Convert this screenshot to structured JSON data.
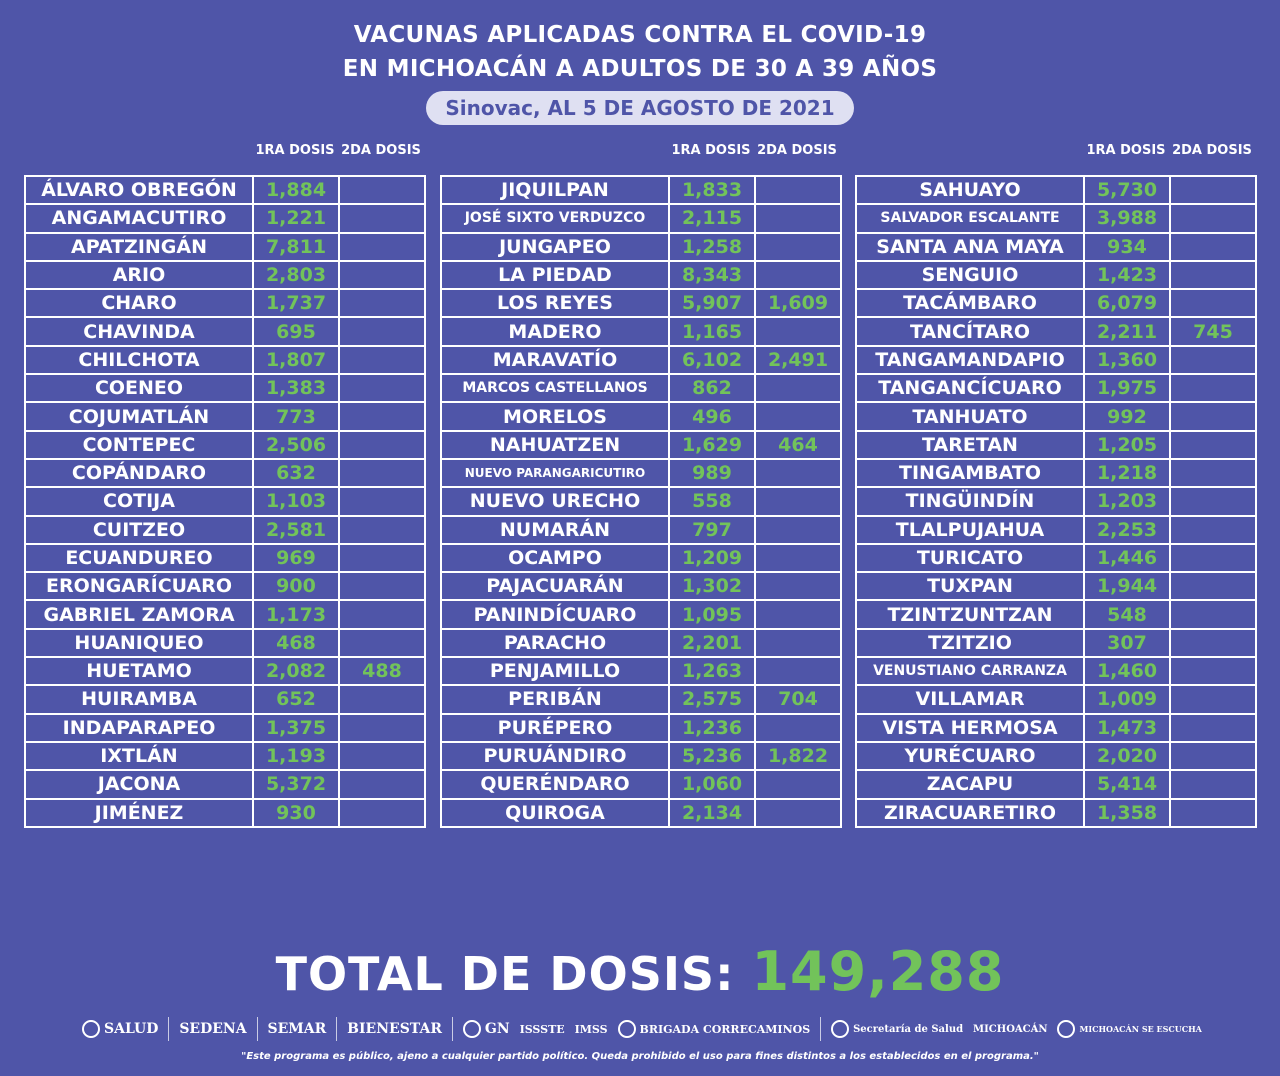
{
  "header": {
    "line1": "VACUNAS APLICADAS CONTRA EL COVID-19",
    "line2": "EN MICHOACÁN A ADULTOS DE 30 A 39 AÑOS",
    "subtitle": "Sinovac, AL 5 DE AGOSTO DE 2021"
  },
  "columns": {
    "first": "1RA DOSIS",
    "second": "2DA DOSIS"
  },
  "table1": [
    {
      "name": "ÁLVARO OBREGÓN",
      "d1": "1,884",
      "d2": ""
    },
    {
      "name": "ANGAMACUTIRO",
      "d1": "1,221",
      "d2": ""
    },
    {
      "name": "APATZINGÁN",
      "d1": "7,811",
      "d2": ""
    },
    {
      "name": "ARIO",
      "d1": "2,803",
      "d2": ""
    },
    {
      "name": "CHARO",
      "d1": "1,737",
      "d2": ""
    },
    {
      "name": "CHAVINDA",
      "d1": "695",
      "d2": ""
    },
    {
      "name": "CHILCHOTA",
      "d1": "1,807",
      "d2": ""
    },
    {
      "name": "COENEO",
      "d1": "1,383",
      "d2": ""
    },
    {
      "name": "COJUMATLÁN",
      "d1": "773",
      "d2": ""
    },
    {
      "name": "CONTEPEC",
      "d1": "2,506",
      "d2": ""
    },
    {
      "name": "COPÁNDARO",
      "d1": "632",
      "d2": ""
    },
    {
      "name": "COTIJA",
      "d1": "1,103",
      "d2": ""
    },
    {
      "name": "CUITZEO",
      "d1": "2,581",
      "d2": ""
    },
    {
      "name": "ECUANDUREO",
      "d1": "969",
      "d2": ""
    },
    {
      "name": "ERONGARÍCUARO",
      "d1": "900",
      "d2": ""
    },
    {
      "name": "GABRIEL ZAMORA",
      "d1": "1,173",
      "d2": ""
    },
    {
      "name": "HUANIQUEO",
      "d1": "468",
      "d2": ""
    },
    {
      "name": "HUETAMO",
      "d1": "2,082",
      "d2": "488"
    },
    {
      "name": "HUIRAMBA",
      "d1": "652",
      "d2": ""
    },
    {
      "name": "INDAPARAPEO",
      "d1": "1,375",
      "d2": ""
    },
    {
      "name": "IXTLÁN",
      "d1": "1,193",
      "d2": ""
    },
    {
      "name": "JACONA",
      "d1": "5,372",
      "d2": ""
    },
    {
      "name": "JIMÉNEZ",
      "d1": "930",
      "d2": ""
    }
  ],
  "table2": [
    {
      "name": "JIQUILPAN",
      "d1": "1,833",
      "d2": ""
    },
    {
      "name": "JOSÉ SIXTO VERDUZCO",
      "d1": "2,115",
      "d2": ""
    },
    {
      "name": "JUNGAPEO",
      "d1": "1,258",
      "d2": ""
    },
    {
      "name": "LA PIEDAD",
      "d1": "8,343",
      "d2": ""
    },
    {
      "name": "LOS REYES",
      "d1": "5,907",
      "d2": "1,609"
    },
    {
      "name": "MADERO",
      "d1": "1,165",
      "d2": ""
    },
    {
      "name": "MARAVATÍO",
      "d1": "6,102",
      "d2": "2,491"
    },
    {
      "name": "MARCOS CASTELLANOS",
      "d1": "862",
      "d2": ""
    },
    {
      "name": "MORELOS",
      "d1": "496",
      "d2": ""
    },
    {
      "name": "NAHUATZEN",
      "d1": "1,629",
      "d2": "464"
    },
    {
      "name": "NUEVO PARANGARICUTIRO",
      "d1": "989",
      "d2": ""
    },
    {
      "name": "NUEVO URECHO",
      "d1": "558",
      "d2": ""
    },
    {
      "name": "NUMARÁN",
      "d1": "797",
      "d2": ""
    },
    {
      "name": "OCAMPO",
      "d1": "1,209",
      "d2": ""
    },
    {
      "name": "PAJACUARÁN",
      "d1": "1,302",
      "d2": ""
    },
    {
      "name": "PANINDÍCUARO",
      "d1": "1,095",
      "d2": ""
    },
    {
      "name": "PARACHO",
      "d1": "2,201",
      "d2": ""
    },
    {
      "name": "PENJAMILLO",
      "d1": "1,263",
      "d2": ""
    },
    {
      "name": "PERIBÁN",
      "d1": "2,575",
      "d2": "704"
    },
    {
      "name": "PURÉPERO",
      "d1": "1,236",
      "d2": ""
    },
    {
      "name": "PURUÁNDIRO",
      "d1": "5,236",
      "d2": "1,822"
    },
    {
      "name": "QUERÉNDARO",
      "d1": "1,060",
      "d2": ""
    },
    {
      "name": "QUIROGA",
      "d1": "2,134",
      "d2": ""
    }
  ],
  "table3": [
    {
      "name": "SAHUAYO",
      "d1": "5,730",
      "d2": ""
    },
    {
      "name": "SALVADOR ESCALANTE",
      "d1": "3,988",
      "d2": ""
    },
    {
      "name": "SANTA ANA MAYA",
      "d1": "934",
      "d2": ""
    },
    {
      "name": "SENGUIO",
      "d1": "1,423",
      "d2": ""
    },
    {
      "name": "TACÁMBARO",
      "d1": "6,079",
      "d2": ""
    },
    {
      "name": "TANCÍTARO",
      "d1": "2,211",
      "d2": "745"
    },
    {
      "name": "TANGAMANDAPIO",
      "d1": "1,360",
      "d2": ""
    },
    {
      "name": "TANGANCÍCUARO",
      "d1": "1,975",
      "d2": ""
    },
    {
      "name": "TANHUATO",
      "d1": "992",
      "d2": ""
    },
    {
      "name": "TARETAN",
      "d1": "1,205",
      "d2": ""
    },
    {
      "name": "TINGAMBATO",
      "d1": "1,218",
      "d2": ""
    },
    {
      "name": "TINGÜINDÍN",
      "d1": "1,203",
      "d2": ""
    },
    {
      "name": "TLALPUJAHUA",
      "d1": "2,253",
      "d2": ""
    },
    {
      "name": "TURICATO",
      "d1": "1,446",
      "d2": ""
    },
    {
      "name": "TUXPAN",
      "d1": "1,944",
      "d2": ""
    },
    {
      "name": "TZINTZUNTZAN",
      "d1": "548",
      "d2": ""
    },
    {
      "name": "TZITZIO",
      "d1": "307",
      "d2": ""
    },
    {
      "name": "VENUSTIANO CARRANZA",
      "d1": "1,460",
      "d2": ""
    },
    {
      "name": "VILLAMAR",
      "d1": "1,009",
      "d2": ""
    },
    {
      "name": "VISTA HERMOSA",
      "d1": "1,473",
      "d2": ""
    },
    {
      "name": "YURÉCUARO",
      "d1": "2,020",
      "d2": ""
    },
    {
      "name": "ZACAPU",
      "d1": "5,414",
      "d2": ""
    },
    {
      "name": "ZIRACUARETIRO",
      "d1": "1,358",
      "d2": ""
    }
  ],
  "total": {
    "label": "TOTAL DE DOSIS:",
    "value": "149,288"
  },
  "logos": [
    "SALUD",
    "SEDENA",
    "SEMAR",
    "BIENESTAR",
    "GN",
    "ISSSTE",
    "IMSS",
    "BRIGADA CORRECAMINOS",
    "Secretaría de Salud",
    "MICHOACÁN",
    "MICHOACÁN SE ESCUCHA"
  ],
  "disclaimer": "\"Este programa es público, ajeno a cualquier partido político. Queda prohibido el uso para fines distintos a los establecidos en el programa.\"",
  "colors": {
    "background": "#4f55a8",
    "value_green": "#72c35a",
    "pill": "#dfe0f2"
  }
}
